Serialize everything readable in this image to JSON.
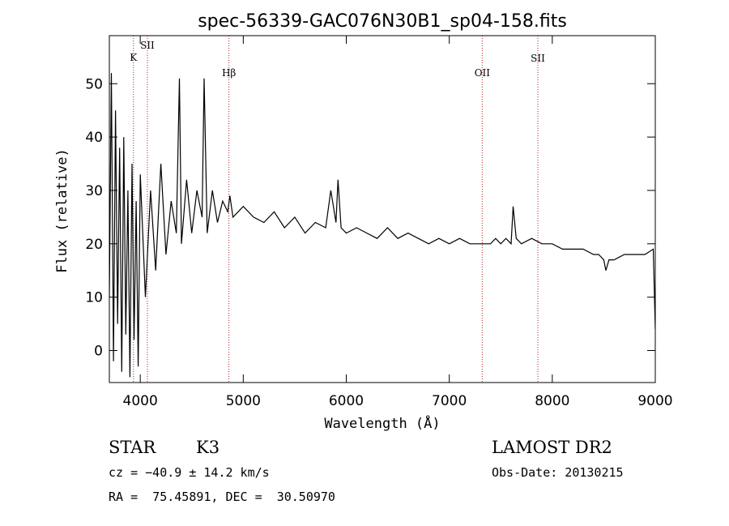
{
  "chart_data": {
    "type": "line",
    "title": "spec-56339-GAC076N30B1_sp04-158.fits",
    "xlabel": "Wavelength (Å)",
    "ylabel": "Flux (relative)",
    "xlim": [
      3700,
      9000
    ],
    "ylim": [
      -6,
      59
    ],
    "x_ticks": [
      4000,
      5000,
      6000,
      7000,
      8000,
      9000
    ],
    "y_ticks": [
      0,
      10,
      20,
      30,
      40,
      50
    ],
    "grid": false,
    "series": [
      {
        "x": [
          3700,
          3720,
          3740,
          3760,
          3780,
          3800,
          3820,
          3840,
          3860,
          3880,
          3900,
          3920,
          3940,
          3960,
          3980,
          4000,
          4050,
          4100,
          4150,
          4200,
          4250,
          4300,
          4350,
          4380,
          4400,
          4450,
          4500,
          4550,
          4600,
          4620,
          4650,
          4700,
          4750,
          4800,
          4850,
          4870,
          4900,
          4950,
          5000,
          5100,
          5200,
          5300,
          5400,
          5500,
          5600,
          5700,
          5800,
          5850,
          5900,
          5920,
          5950,
          6000,
          6100,
          6200,
          6300,
          6400,
          6500,
          6600,
          6700,
          6800,
          6900,
          7000,
          7100,
          7200,
          7300,
          7400,
          7450,
          7500,
          7550,
          7600,
          7620,
          7650,
          7700,
          7800,
          7900,
          8000,
          8100,
          8200,
          8300,
          8400,
          8450,
          8500,
          8520,
          8550,
          8600,
          8700,
          8800,
          8900,
          8980,
          9000
        ],
        "y": [
          10,
          52,
          -2,
          45,
          5,
          38,
          -4,
          40,
          3,
          30,
          -5,
          35,
          2,
          28,
          -3,
          33,
          10,
          30,
          15,
          35,
          18,
          28,
          22,
          51,
          20,
          32,
          22,
          30,
          25,
          51,
          22,
          30,
          24,
          28,
          26,
          29,
          25,
          26,
          27,
          25,
          24,
          26,
          23,
          25,
          22,
          24,
          23,
          30,
          24,
          32,
          23,
          22,
          23,
          22,
          21,
          23,
          21,
          22,
          21,
          20,
          21,
          20,
          21,
          20,
          20,
          20,
          21,
          20,
          21,
          20,
          27,
          21,
          20,
          21,
          20,
          20,
          19,
          19,
          19,
          18,
          18,
          17,
          15,
          17,
          17,
          18,
          18,
          18,
          19,
          4
        ]
      }
    ],
    "line_markers": [
      {
        "name": "K",
        "wavelength": 3934
      },
      {
        "name": "SII",
        "wavelength": 4069
      },
      {
        "name": "Hβ",
        "wavelength": 4861
      },
      {
        "name": "OII",
        "wavelength": 7320
      },
      {
        "name": "SII",
        "wavelength": 7860
      }
    ]
  },
  "info": {
    "class": "STAR",
    "subclass": "K3",
    "survey": "LAMOST DR2",
    "cz": "cz = −40.9 ± 14.2 km/s",
    "obsdate": "Obs-Date: 20130215",
    "radec": "RA =  75.45891, DEC =  30.50970"
  },
  "colors": {
    "spectrum": "#000000",
    "marker_line": "#b22222",
    "axes": "#000000"
  }
}
